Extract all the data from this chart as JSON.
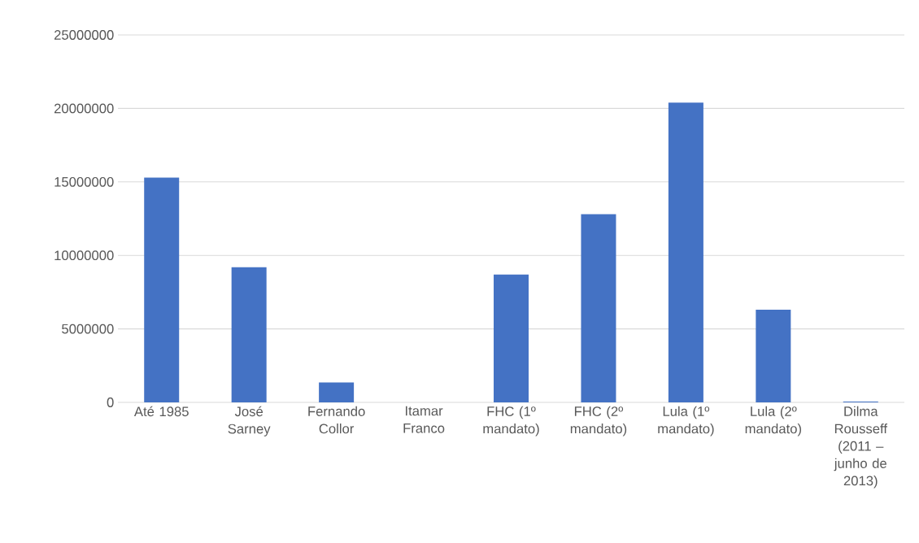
{
  "chart_data": {
    "type": "bar",
    "categories": [
      "Até 1985",
      "José Sarney",
      "Fernando Collor",
      "Itamar Franco",
      "FHC (1º mandato)",
      "FHC (2º mandato)",
      "Lula (1º mandato)",
      "Lula (2º mandato)",
      "Dilma Rousseff (2011 – junho de 2013)"
    ],
    "values": [
      15300000,
      9200000,
      1350000,
      0,
      8700000,
      12800000,
      20400000,
      6300000,
      50000
    ],
    "color": "#4472c4",
    "ylim": [
      0,
      25000000
    ],
    "yticks": [
      0,
      5000000,
      10000000,
      15000000,
      20000000,
      25000000
    ],
    "grid": "y"
  }
}
